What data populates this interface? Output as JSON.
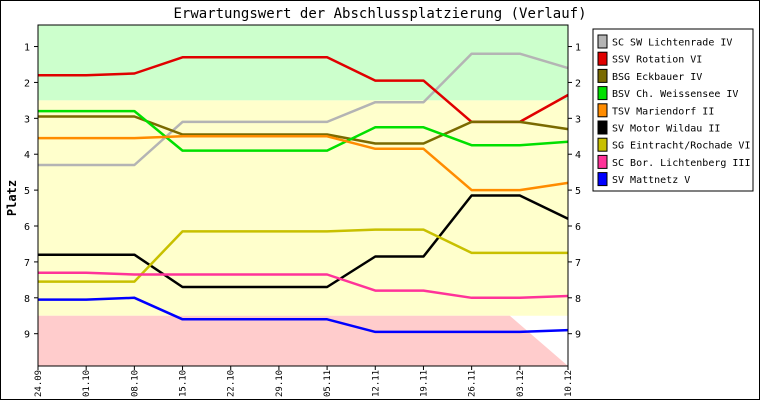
{
  "chart_data": {
    "type": "line",
    "title": "Erwartungswert der Abschlussplatzierung (Verlauf)",
    "ylabel": "Platz",
    "xlabel": "",
    "x": [
      "24.09",
      "01.10",
      "08.10",
      "15.10",
      "22.10",
      "29.10",
      "05.11",
      "12.11",
      "19.11",
      "26.11",
      "03.12",
      "10.12"
    ],
    "ylim": [
      0.4,
      9.9
    ],
    "y_reversed": true,
    "y_ticks": [
      1,
      2,
      3,
      4,
      5,
      6,
      7,
      8,
      9
    ],
    "bands": [
      {
        "from": 0.4,
        "to": 2.5,
        "color": "#ccffcc"
      },
      {
        "from": 2.5,
        "to": 8.5,
        "color": "#ffffcc"
      },
      {
        "from": 8.5,
        "to": 9.9,
        "color": "#ffcccc"
      }
    ],
    "legend_position": "right",
    "series": [
      {
        "name": "SC SW Lichtenrade IV",
        "color": "#b4b4b4",
        "values": [
          4.3,
          4.3,
          4.3,
          3.1,
          3.1,
          3.1,
          3.1,
          2.55,
          2.55,
          1.2,
          1.2,
          1.6
        ]
      },
      {
        "name": "SSV Rotation VI",
        "color": "#e00000",
        "values": [
          1.8,
          1.8,
          1.75,
          1.3,
          1.3,
          1.3,
          1.3,
          1.95,
          1.95,
          3.1,
          3.1,
          2.35
        ]
      },
      {
        "name": "BSG Eckbauer IV",
        "color": "#7a6a00",
        "values": [
          2.95,
          2.95,
          2.95,
          3.45,
          3.45,
          3.45,
          3.45,
          3.7,
          3.7,
          3.1,
          3.1,
          3.3
        ]
      },
      {
        "name": "BSV Ch. Weissensee IV",
        "color": "#00e000",
        "values": [
          2.8,
          2.8,
          2.8,
          3.9,
          3.9,
          3.9,
          3.9,
          3.25,
          3.25,
          3.75,
          3.75,
          3.65
        ]
      },
      {
        "name": "TSV Mariendorf II",
        "color": "#ff8c00",
        "values": [
          3.55,
          3.55,
          3.55,
          3.5,
          3.5,
          3.5,
          3.5,
          3.85,
          3.85,
          5.0,
          5.0,
          4.8
        ]
      },
      {
        "name": "SV Motor Wildau II",
        "color": "#000000",
        "values": [
          6.8,
          6.8,
          6.8,
          7.7,
          7.7,
          7.7,
          7.7,
          6.85,
          6.85,
          5.15,
          5.15,
          5.8
        ]
      },
      {
        "name": "SG Eintracht/Rochade VI",
        "color": "#c8c000",
        "values": [
          7.55,
          7.55,
          7.55,
          6.15,
          6.15,
          6.15,
          6.15,
          6.1,
          6.1,
          6.75,
          6.75,
          6.75
        ]
      },
      {
        "name": "SC Bor. Lichtenberg III",
        "color": "#ff3399",
        "values": [
          7.3,
          7.3,
          7.35,
          7.35,
          7.35,
          7.35,
          7.35,
          7.8,
          7.8,
          8.0,
          8.0,
          7.95
        ]
      },
      {
        "name": "SV Mattnetz V",
        "color": "#0000ff",
        "values": [
          8.05,
          8.05,
          8.0,
          8.6,
          8.6,
          8.6,
          8.6,
          8.95,
          8.95,
          8.95,
          8.95,
          8.9
        ]
      }
    ]
  }
}
